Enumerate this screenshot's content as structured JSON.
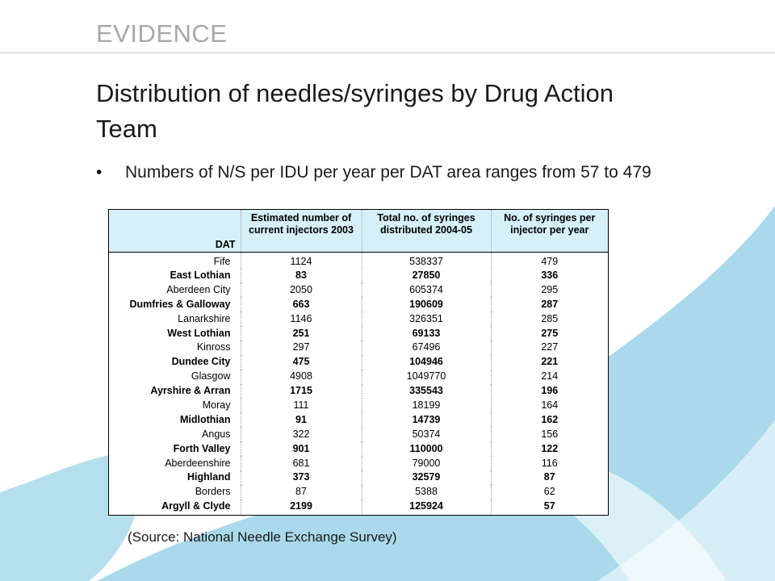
{
  "header": {
    "label": "EVIDENCE"
  },
  "slide": {
    "title": "Distribution of needles/syringes by Drug Action Team",
    "bullet": "Numbers of N/S per IDU per year per DAT area ranges from 57 to  479",
    "source": "(Source: National Needle Exchange Survey)"
  },
  "colors": {
    "header_text": "#a7a8aa",
    "swoosh": "#a9d9ea",
    "table_header_bg": "#d6f0fa"
  },
  "table": {
    "columns": [
      "DAT",
      "Estimated number of current injectors 2003",
      "Total no. of syringes distributed 2004-05",
      "No. of syringes per injector per year"
    ],
    "rows": [
      {
        "dat": "Fife",
        "injectors": "1124",
        "syringes": "538337",
        "per_injector": "479",
        "bold": false
      },
      {
        "dat": "East Lothian",
        "injectors": "83",
        "syringes": "27850",
        "per_injector": "336",
        "bold": true
      },
      {
        "dat": "Aberdeen City",
        "injectors": "2050",
        "syringes": "605374",
        "per_injector": "295",
        "bold": false
      },
      {
        "dat": "Dumfries & Galloway",
        "injectors": "663",
        "syringes": "190609",
        "per_injector": "287",
        "bold": true
      },
      {
        "dat": "Lanarkshire",
        "injectors": "1146",
        "syringes": "326351",
        "per_injector": "285",
        "bold": false
      },
      {
        "dat": "West Lothian",
        "injectors": "251",
        "syringes": "69133",
        "per_injector": "275",
        "bold": true
      },
      {
        "dat": "Kinross",
        "injectors": "297",
        "syringes": "67496",
        "per_injector": "227",
        "bold": false
      },
      {
        "dat": "Dundee City",
        "injectors": "475",
        "syringes": "104946",
        "per_injector": "221",
        "bold": true
      },
      {
        "dat": "Glasgow",
        "injectors": "4908",
        "syringes": "1049770",
        "per_injector": "214",
        "bold": false
      },
      {
        "dat": "Ayrshire & Arran",
        "injectors": "1715",
        "syringes": "335543",
        "per_injector": "196",
        "bold": true
      },
      {
        "dat": "Moray",
        "injectors": "111",
        "syringes": "18199",
        "per_injector": "164",
        "bold": false
      },
      {
        "dat": "Midlothian",
        "injectors": "91",
        "syringes": "14739",
        "per_injector": "162",
        "bold": true
      },
      {
        "dat": "Angus",
        "injectors": "322",
        "syringes": "50374",
        "per_injector": "156",
        "bold": false
      },
      {
        "dat": "Forth Valley",
        "injectors": "901",
        "syringes": "110000",
        "per_injector": "122",
        "bold": true
      },
      {
        "dat": "Aberdeenshire",
        "injectors": "681",
        "syringes": "79000",
        "per_injector": "116",
        "bold": false
      },
      {
        "dat": "Highland",
        "injectors": "373",
        "syringes": "32579",
        "per_injector": "87",
        "bold": true
      },
      {
        "dat": "Borders",
        "injectors": "87",
        "syringes": "5388",
        "per_injector": "62",
        "bold": false
      },
      {
        "dat": "Argyll & Clyde",
        "injectors": "2199",
        "syringes": "125924",
        "per_injector": "57",
        "bold": true
      }
    ]
  }
}
